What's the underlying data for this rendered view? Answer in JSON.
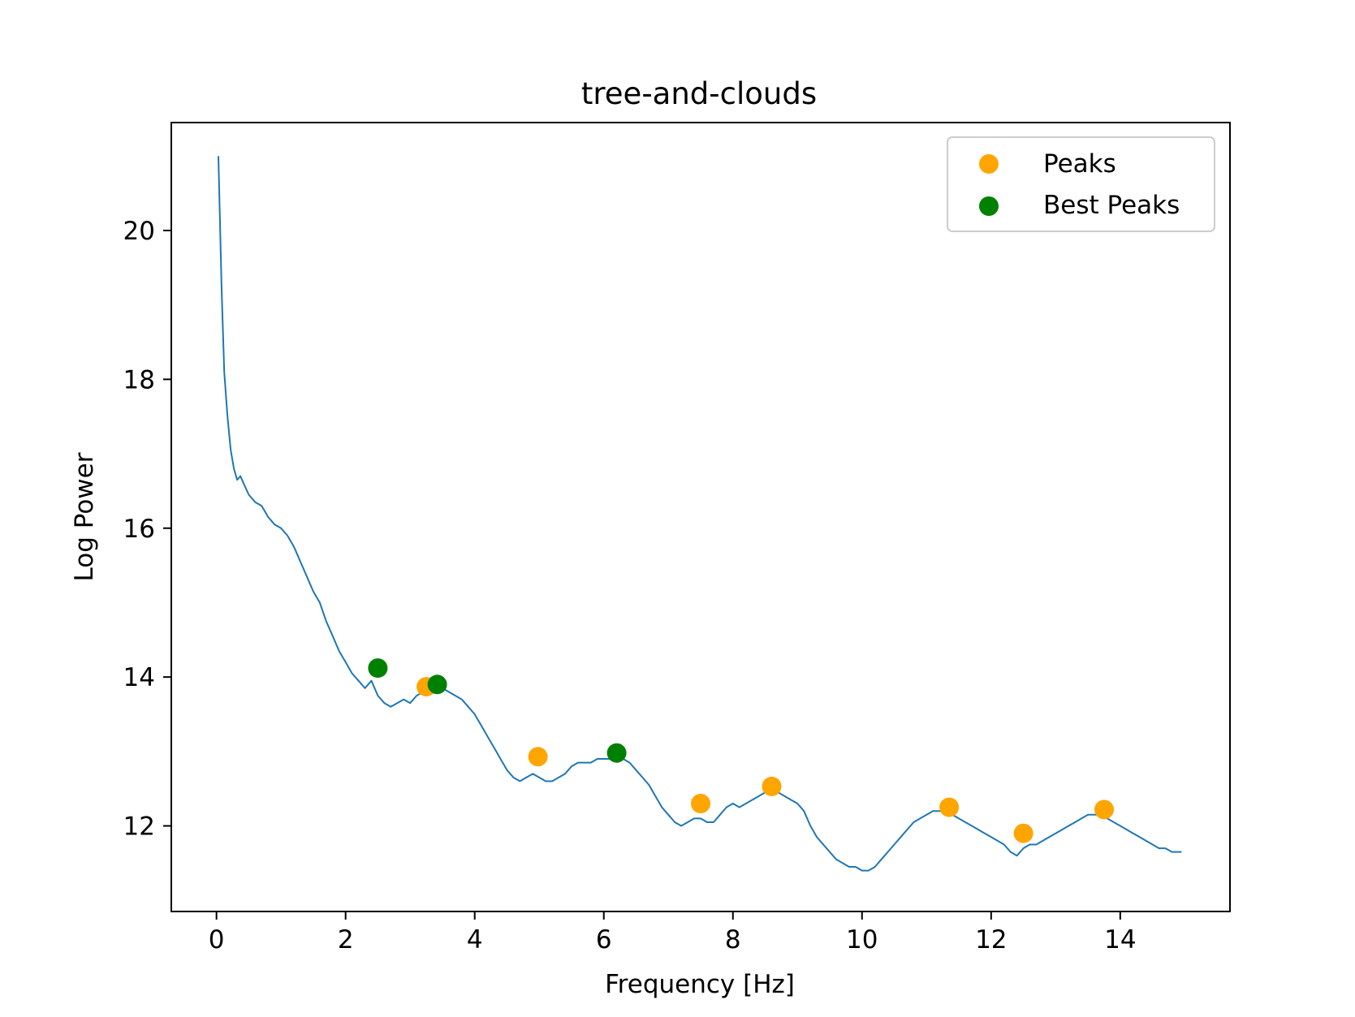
{
  "chart_data": {
    "type": "line",
    "title": "tree-and-clouds",
    "xlabel": "Frequency [Hz]",
    "ylabel": "Log Power",
    "xlim": [
      -0.7,
      15.7
    ],
    "ylim": [
      10.85,
      21.45
    ],
    "xticks": [
      0,
      2,
      4,
      6,
      8,
      10,
      12,
      14
    ],
    "yticks": [
      12,
      14,
      16,
      18,
      20
    ],
    "grid": false,
    "legend_position": "top-right",
    "colors": {
      "line": "#1f77b4",
      "peaks": "#ffa500",
      "best_peaks": "#008000"
    },
    "series": [
      {
        "kind": "line",
        "x": [
          0.03,
          0.08,
          0.12,
          0.17,
          0.22,
          0.27,
          0.32,
          0.37,
          0.42,
          0.5,
          0.6,
          0.7,
          0.8,
          0.9,
          1.0,
          1.1,
          1.2,
          1.3,
          1.4,
          1.5,
          1.6,
          1.7,
          1.8,
          1.9,
          2.0,
          2.1,
          2.2,
          2.3,
          2.4,
          2.5,
          2.6,
          2.7,
          2.8,
          2.9,
          3.0,
          3.1,
          3.2,
          3.3,
          3.4,
          3.5,
          3.6,
          3.7,
          3.8,
          3.9,
          4.0,
          4.1,
          4.2,
          4.3,
          4.4,
          4.5,
          4.6,
          4.7,
          4.8,
          4.9,
          5.0,
          5.1,
          5.2,
          5.3,
          5.4,
          5.5,
          5.6,
          5.7,
          5.8,
          5.9,
          6.0,
          6.1,
          6.2,
          6.3,
          6.4,
          6.5,
          6.6,
          6.7,
          6.8,
          6.9,
          7.0,
          7.1,
          7.2,
          7.3,
          7.4,
          7.5,
          7.6,
          7.7,
          7.8,
          7.9,
          8.0,
          8.1,
          8.2,
          8.3,
          8.4,
          8.5,
          8.6,
          8.7,
          8.8,
          8.9,
          9.0,
          9.1,
          9.2,
          9.3,
          9.4,
          9.5,
          9.6,
          9.7,
          9.8,
          9.9,
          10.0,
          10.1,
          10.2,
          10.3,
          10.4,
          10.5,
          10.6,
          10.7,
          10.8,
          10.9,
          11.0,
          11.1,
          11.2,
          11.3,
          11.4,
          11.5,
          11.6,
          11.7,
          11.8,
          11.9,
          12.0,
          12.1,
          12.2,
          12.3,
          12.4,
          12.5,
          12.6,
          12.7,
          12.8,
          12.9,
          13.0,
          13.1,
          13.2,
          13.3,
          13.4,
          13.5,
          13.6,
          13.7,
          13.8,
          13.9,
          14.0,
          14.1,
          14.2,
          14.3,
          14.4,
          14.5,
          14.6,
          14.7,
          14.8,
          14.9,
          14.95
        ],
        "y": [
          21.0,
          19.2,
          18.1,
          17.5,
          17.05,
          16.8,
          16.65,
          16.7,
          16.6,
          16.45,
          16.35,
          16.3,
          16.15,
          16.05,
          16.0,
          15.9,
          15.75,
          15.55,
          15.35,
          15.15,
          15.0,
          14.75,
          14.55,
          14.35,
          14.2,
          14.05,
          13.95,
          13.85,
          13.95,
          13.75,
          13.65,
          13.6,
          13.65,
          13.7,
          13.65,
          13.75,
          13.8,
          13.85,
          13.85,
          13.85,
          13.8,
          13.75,
          13.7,
          13.6,
          13.5,
          13.35,
          13.2,
          13.05,
          12.9,
          12.75,
          12.65,
          12.6,
          12.65,
          12.7,
          12.65,
          12.6,
          12.6,
          12.65,
          12.7,
          12.8,
          12.85,
          12.85,
          12.85,
          12.9,
          12.9,
          12.9,
          12.95,
          12.9,
          12.85,
          12.75,
          12.65,
          12.55,
          12.4,
          12.25,
          12.15,
          12.05,
          12.0,
          12.05,
          12.1,
          12.1,
          12.05,
          12.05,
          12.15,
          12.25,
          12.3,
          12.25,
          12.3,
          12.35,
          12.4,
          12.45,
          12.45,
          12.45,
          12.4,
          12.35,
          12.3,
          12.2,
          12.0,
          11.85,
          11.75,
          11.65,
          11.55,
          11.5,
          11.45,
          11.45,
          11.4,
          11.4,
          11.45,
          11.55,
          11.65,
          11.75,
          11.85,
          11.95,
          12.05,
          12.1,
          12.15,
          12.2,
          12.2,
          12.2,
          12.15,
          12.1,
          12.05,
          12.0,
          11.95,
          11.9,
          11.85,
          11.8,
          11.75,
          11.65,
          11.6,
          11.7,
          11.75,
          11.75,
          11.8,
          11.85,
          11.9,
          11.95,
          12.0,
          12.05,
          12.1,
          12.15,
          12.15,
          12.15,
          12.1,
          12.05,
          12.0,
          11.95,
          11.9,
          11.85,
          11.8,
          11.75,
          11.7,
          11.7,
          11.65,
          11.65,
          11.65
        ]
      },
      {
        "name": "Peaks",
        "kind": "scatter",
        "x": [
          3.25,
          4.98,
          7.5,
          8.6,
          11.35,
          12.5,
          13.75
        ],
        "y": [
          13.87,
          12.93,
          12.3,
          12.53,
          12.25,
          11.9,
          12.22
        ]
      },
      {
        "name": "Best Peaks",
        "kind": "scatter",
        "x": [
          2.5,
          3.42,
          6.2
        ],
        "y": [
          14.12,
          13.9,
          12.98
        ]
      }
    ]
  }
}
